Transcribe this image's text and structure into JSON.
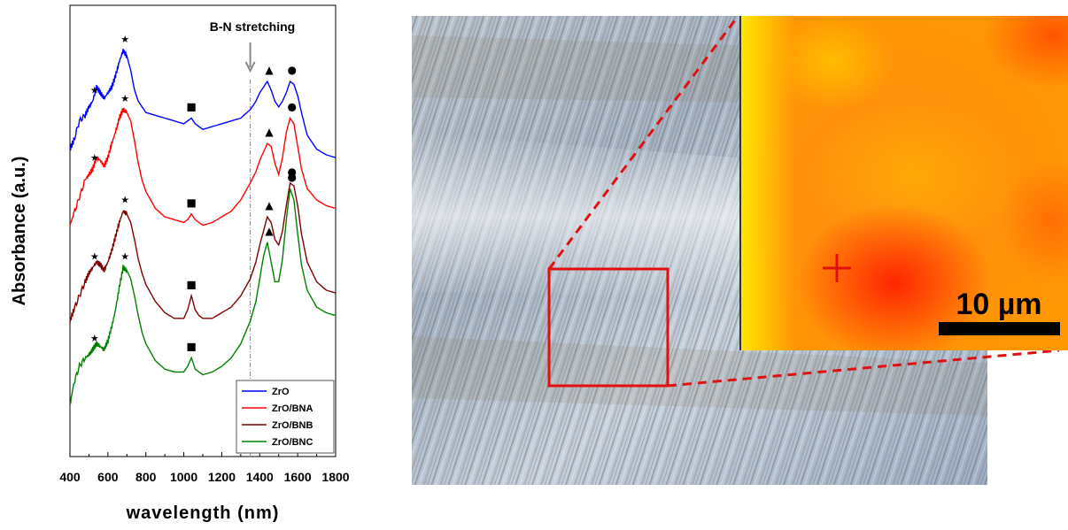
{
  "chart_data": {
    "type": "line",
    "title": "",
    "xlabel": "wavelength (nm)",
    "ylabel": "Absorbance (a.u.)",
    "xlim": [
      400,
      1800
    ],
    "xticks": [
      400,
      600,
      800,
      1000,
      1200,
      1400,
      1600,
      1800
    ],
    "x_tick_labels": [
      "400",
      "600",
      "800",
      "1000",
      "1200",
      "1400",
      "1600",
      "1800"
    ],
    "y_ticks_shown": false,
    "grid": false,
    "legend_position": "bottom-right",
    "annotation": {
      "text": "B-N stretching",
      "x": 1350
    },
    "marker_symbols": {
      "star": "★",
      "square": "■",
      "triangle": "▲",
      "circle": "●"
    },
    "marker_positions": [
      {
        "symbol": "star",
        "x": 530
      },
      {
        "symbol": "star",
        "x": 690
      },
      {
        "symbol": "square",
        "x": 1040
      },
      {
        "symbol": "triangle",
        "x": 1450
      },
      {
        "symbol": "circle",
        "x": 1570
      }
    ],
    "x": [
      400,
      420,
      450,
      480,
      500,
      520,
      540,
      560,
      580,
      600,
      620,
      640,
      660,
      680,
      700,
      720,
      740,
      760,
      780,
      800,
      850,
      900,
      950,
      1000,
      1020,
      1040,
      1060,
      1080,
      1100,
      1150,
      1200,
      1250,
      1300,
      1350,
      1380,
      1400,
      1420,
      1440,
      1460,
      1480,
      1500,
      1520,
      1540,
      1560,
      1580,
      1600,
      1620,
      1650,
      1700,
      1750,
      1800
    ],
    "series": [
      {
        "name": "ZrO",
        "color": "#0000ff",
        "values": [
          7.45,
          7.6,
          7.95,
          8.05,
          8.2,
          8.3,
          8.55,
          8.45,
          8.35,
          8.45,
          8.55,
          8.75,
          9.0,
          9.2,
          9.1,
          8.85,
          8.5,
          8.3,
          8.2,
          8.1,
          8.05,
          8.0,
          7.95,
          7.9,
          7.95,
          8.0,
          7.9,
          7.85,
          7.8,
          7.85,
          7.9,
          7.95,
          8.0,
          8.15,
          8.3,
          8.45,
          8.55,
          8.65,
          8.5,
          8.3,
          8.2,
          8.3,
          8.45,
          8.65,
          8.6,
          8.4,
          8.1,
          7.7,
          7.45,
          7.35,
          7.3
        ]
      },
      {
        "name": "ZrO/BNA",
        "color": "#ff0000",
        "values": [
          6.1,
          6.3,
          6.6,
          6.9,
          7.0,
          7.1,
          7.3,
          7.25,
          7.15,
          7.3,
          7.55,
          7.75,
          8.0,
          8.15,
          8.1,
          7.95,
          7.6,
          7.2,
          6.9,
          6.7,
          6.4,
          6.25,
          6.2,
          6.15,
          6.2,
          6.3,
          6.2,
          6.15,
          6.1,
          6.15,
          6.25,
          6.35,
          6.55,
          6.85,
          7.05,
          7.25,
          7.4,
          7.55,
          7.5,
          7.2,
          7.0,
          7.3,
          7.75,
          8.0,
          7.9,
          7.5,
          7.1,
          6.75,
          6.55,
          6.45,
          6.4
        ]
      },
      {
        "name": "ZrO/BNB",
        "color": "#800000",
        "values": [
          4.4,
          4.6,
          4.85,
          5.1,
          5.25,
          5.35,
          5.45,
          5.4,
          5.3,
          5.45,
          5.65,
          5.9,
          6.15,
          6.35,
          6.3,
          6.15,
          5.85,
          5.5,
          5.25,
          5.05,
          4.75,
          4.55,
          4.45,
          4.45,
          4.6,
          4.85,
          4.6,
          4.5,
          4.45,
          4.45,
          4.55,
          4.65,
          4.85,
          5.15,
          5.45,
          5.75,
          6.0,
          6.25,
          6.15,
          5.85,
          5.75,
          6.0,
          6.45,
          6.85,
          6.8,
          6.45,
          5.95,
          5.45,
          5.1,
          4.95,
          4.9
        ]
      },
      {
        "name": "ZrO/BNC",
        "color": "#008000",
        "values": [
          2.9,
          3.3,
          3.6,
          3.75,
          3.8,
          3.9,
          4.0,
          3.95,
          3.9,
          4.05,
          4.3,
          4.6,
          5.0,
          5.35,
          5.3,
          5.15,
          4.85,
          4.5,
          4.2,
          4.0,
          3.7,
          3.55,
          3.5,
          3.5,
          3.6,
          3.75,
          3.55,
          3.5,
          3.45,
          3.5,
          3.6,
          3.75,
          4.0,
          4.4,
          4.75,
          5.15,
          5.55,
          5.8,
          5.45,
          5.1,
          5.1,
          5.5,
          6.2,
          6.75,
          6.55,
          5.95,
          5.4,
          4.95,
          4.65,
          4.55,
          4.5
        ]
      }
    ]
  },
  "micrograph": {
    "scale_bar_label": "10 µm",
    "colors": {
      "zoom_box": "#e01010",
      "scale_bar": "#000000",
      "crosshair": "#e01010"
    }
  }
}
